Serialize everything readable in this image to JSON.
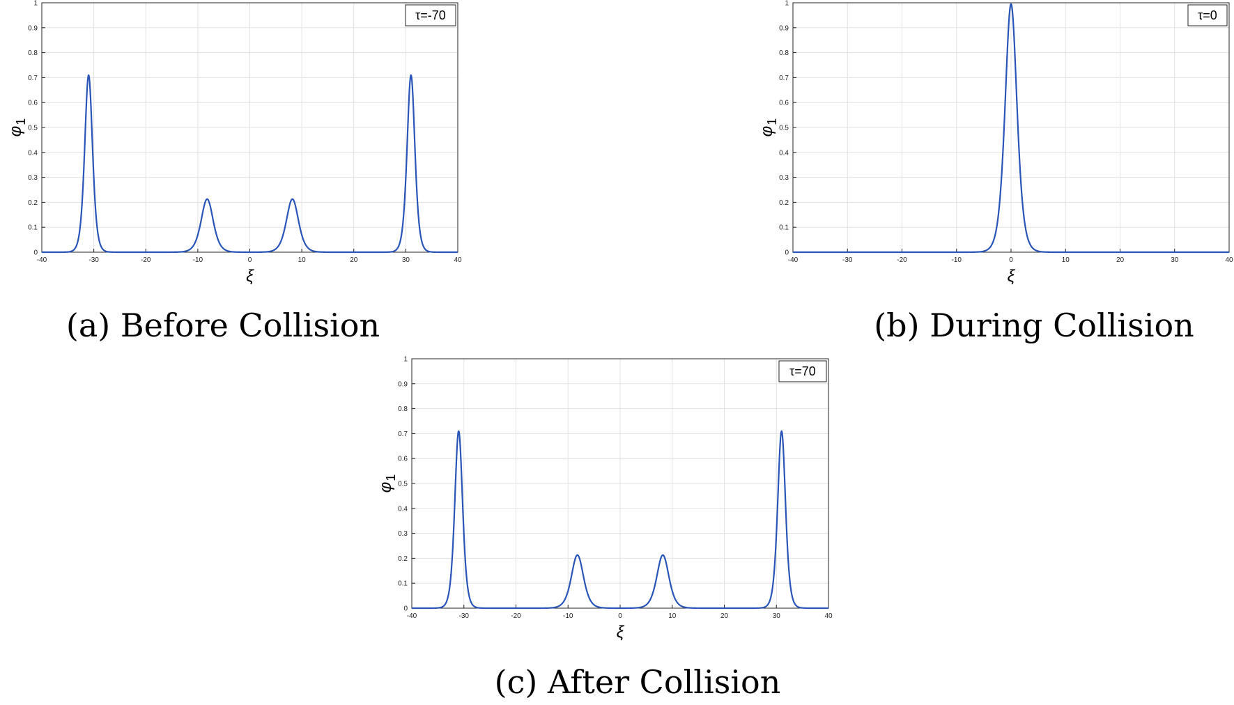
{
  "colors": {
    "line": "#2a55b8",
    "grid": "#e3e3e3",
    "axis": "#000000"
  },
  "chart_data": [
    {
      "type": "line",
      "caption": "(a) Before Collision",
      "tau_label": "τ=-70",
      "xlabel": "ξ",
      "ylabel": "φ",
      "ylabel_sub": "1",
      "xlim": [
        -40,
        40
      ],
      "ylim": [
        0,
        1
      ],
      "xticks": [
        -40,
        -30,
        -20,
        -10,
        0,
        10,
        20,
        30,
        40
      ],
      "yticks": [
        0,
        0.1,
        0.2,
        0.3,
        0.4,
        0.5,
        0.6,
        0.7,
        0.8,
        0.9,
        1
      ],
      "xtick_labels": [
        "-40",
        "-30",
        "-20",
        "-10",
        "0",
        "10",
        "20",
        "30",
        "40"
      ],
      "ytick_labels": [
        "0",
        "0.1",
        "0.2",
        "0.3",
        "0.4",
        "0.5",
        "0.6",
        "0.7",
        "0.8",
        "0.9",
        "1"
      ],
      "grid": true,
      "peaks": [
        {
          "center": -31,
          "height": 0.71,
          "width": 1.0
        },
        {
          "center": -8.2,
          "height": 0.213,
          "width": 1.55
        },
        {
          "center": 8.2,
          "height": 0.213,
          "width": 1.55
        },
        {
          "center": 31,
          "height": 0.71,
          "width": 1.0
        }
      ]
    },
    {
      "type": "line",
      "caption": "(b) During Collision",
      "tau_label": "τ=0",
      "xlabel": "ξ",
      "ylabel": "φ",
      "ylabel_sub": "1",
      "xlim": [
        -40,
        40
      ],
      "ylim": [
        0,
        1
      ],
      "xticks": [
        -40,
        -30,
        -20,
        -10,
        0,
        10,
        20,
        30,
        40
      ],
      "yticks": [
        0,
        0.1,
        0.2,
        0.3,
        0.4,
        0.5,
        0.6,
        0.7,
        0.8,
        0.9,
        1
      ],
      "xtick_labels": [
        "-40",
        "-30",
        "-20",
        "-10",
        "0",
        "10",
        "20",
        "30",
        "40"
      ],
      "ytick_labels": [
        "0",
        "0.1",
        "0.2",
        "0.3",
        "0.4",
        "0.5",
        "0.6",
        "0.7",
        "0.8",
        "0.9",
        "1"
      ],
      "grid": true,
      "peaks": [
        {
          "center": 0,
          "height": 0.995,
          "width": 1.45
        }
      ]
    },
    {
      "type": "line",
      "caption": "(c) After Collision",
      "tau_label": "τ=70",
      "xlabel": "ξ",
      "ylabel": "φ",
      "ylabel_sub": "1",
      "xlim": [
        -40,
        40
      ],
      "ylim": [
        0,
        1
      ],
      "xticks": [
        -40,
        -30,
        -20,
        -10,
        0,
        10,
        20,
        30,
        40
      ],
      "yticks": [
        0,
        0.1,
        0.2,
        0.3,
        0.4,
        0.5,
        0.6,
        0.7,
        0.8,
        0.9,
        1
      ],
      "xtick_labels": [
        "-40",
        "-30",
        "-20",
        "-10",
        "0",
        "10",
        "20",
        "30",
        "40"
      ],
      "ytick_labels": [
        "0",
        "0.1",
        "0.2",
        "0.3",
        "0.4",
        "0.5",
        "0.6",
        "0.7",
        "0.8",
        "0.9",
        "1"
      ],
      "grid": true,
      "peaks": [
        {
          "center": -31,
          "height": 0.71,
          "width": 1.0
        },
        {
          "center": -8.2,
          "height": 0.213,
          "width": 1.55
        },
        {
          "center": 8.2,
          "height": 0.213,
          "width": 1.55
        },
        {
          "center": 31,
          "height": 0.71,
          "width": 1.0
        }
      ]
    }
  ]
}
